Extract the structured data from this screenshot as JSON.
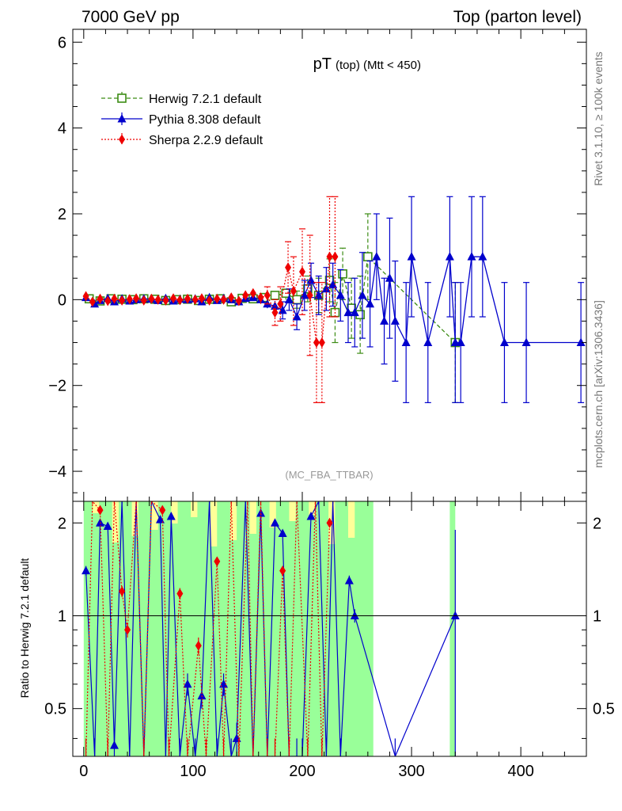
{
  "header": {
    "left": "7000 GeV pp",
    "right": "Top (parton level)"
  },
  "side_labels": {
    "rivet": "Rivet 3.1.10, ≥ 100k events",
    "mcplots": "mcplots.cern.ch [arXiv:1306.3436]"
  },
  "plot_title": {
    "main": "pT",
    "sub": "(top) (Mtt < 450)"
  },
  "analysis_tag": "(MC_FBA_TTBAR)",
  "ratio_ylabel": "Ratio to Herwig 7.2.1 default",
  "chart_data": [
    {
      "type": "line",
      "panel": "main",
      "title": "pT (top) (Mtt < 450)",
      "xlim": [
        -10,
        460
      ],
      "ylim": [
        -4.7,
        6.3
      ],
      "yticks": [
        -4,
        -2,
        0,
        2,
        4,
        6
      ],
      "ytick_labels": [
        "−4",
        "−2",
        "0",
        "2",
        "4",
        "6"
      ],
      "xticks": [
        0,
        100,
        200,
        300,
        400
      ],
      "xtick_labels": [
        "0",
        "100",
        "200",
        "300",
        "400"
      ],
      "legend_position": "top-left",
      "series": [
        {
          "name": "Herwig 7.2.1 default",
          "color": "#3c8c14",
          "marker": "open-square",
          "dash": "5,3",
          "x": [
            5,
            15,
            25,
            35,
            45,
            55,
            65,
            75,
            85,
            95,
            105,
            115,
            125,
            135,
            145,
            155,
            165,
            175,
            185,
            195,
            205,
            215,
            225,
            230,
            237,
            245,
            253,
            260,
            340
          ],
          "y": [
            0.02,
            -0.03,
            0.02,
            0.01,
            0.0,
            0.02,
            0.01,
            -0.02,
            0.0,
            0.01,
            -0.02,
            0.01,
            0.02,
            -0.05,
            0.03,
            0.02,
            0.05,
            0.1,
            0.15,
            0.0,
            0.25,
            0.1,
            0.45,
            -0.3,
            0.6,
            -0.2,
            -0.35,
            1.0,
            -1.0
          ],
          "err": [
            0.02,
            0.02,
            0.02,
            0.02,
            0.02,
            0.02,
            0.02,
            0.02,
            0.02,
            0.02,
            0.02,
            0.02,
            0.03,
            0.03,
            0.04,
            0.05,
            0.08,
            0.1,
            0.15,
            0.2,
            0.3,
            0.4,
            0.5,
            0.7,
            0.6,
            0.7,
            0.9,
            1.0,
            1.4
          ]
        },
        {
          "name": "Pythia 8.308 default",
          "color": "#0000cc",
          "marker": "filled-triangle",
          "dash": "",
          "x": [
            2,
            10,
            15,
            22,
            28,
            35,
            42,
            48,
            55,
            62,
            68,
            75,
            82,
            88,
            95,
            102,
            108,
            115,
            122,
            128,
            135,
            142,
            148,
            155,
            162,
            168,
            175,
            182,
            188,
            195,
            202,
            208,
            215,
            222,
            228,
            235,
            242,
            248,
            255,
            262,
            268,
            275,
            280,
            285,
            295,
            300,
            315,
            335,
            340,
            345,
            355,
            365,
            385,
            405,
            455
          ],
          "y": [
            0.05,
            -0.1,
            -0.02,
            0.03,
            -0.05,
            0.02,
            -0.03,
            0.0,
            0.02,
            0.01,
            -0.02,
            0.03,
            -0.03,
            0.01,
            0.0,
            0.02,
            -0.05,
            0.05,
            -0.02,
            0.03,
            0.0,
            -0.05,
            0.03,
            0.05,
            0.0,
            -0.1,
            -0.15,
            -0.25,
            0.0,
            -0.4,
            0.1,
            0.45,
            0.1,
            0.25,
            0.35,
            0.1,
            -0.3,
            -0.3,
            0.1,
            -0.1,
            1.0,
            -0.5,
            0.5,
            -0.5,
            -1.0,
            1.0,
            -1.0,
            1.0,
            -1.0,
            -1.0,
            1.0,
            1.0,
            -1.0,
            -1.0,
            -1.0
          ],
          "err": [
            0.02,
            0.03,
            0.02,
            0.02,
            0.02,
            0.02,
            0.02,
            0.02,
            0.02,
            0.02,
            0.02,
            0.02,
            0.02,
            0.02,
            0.02,
            0.02,
            0.02,
            0.03,
            0.03,
            0.03,
            0.04,
            0.04,
            0.05,
            0.06,
            0.07,
            0.1,
            0.12,
            0.2,
            0.25,
            0.3,
            0.35,
            0.4,
            0.45,
            0.5,
            0.5,
            0.6,
            0.7,
            0.8,
            1.0,
            1.0,
            1.0,
            1.0,
            1.4,
            1.4,
            1.4,
            1.4,
            1.4,
            1.4,
            1.4,
            1.4,
            1.4,
            1.4,
            1.4,
            1.4,
            1.4
          ]
        },
        {
          "name": "Sherpa 2.2.9 default",
          "color": "#ee0000",
          "marker": "filled-diamond",
          "dash": "2,2",
          "x": [
            2,
            8,
            15,
            22,
            28,
            35,
            42,
            48,
            55,
            62,
            68,
            75,
            82,
            88,
            95,
            102,
            108,
            115,
            122,
            128,
            135,
            142,
            148,
            155,
            162,
            168,
            175,
            180,
            187,
            192,
            200,
            207,
            213,
            218,
            225,
            230
          ],
          "y": [
            0.08,
            -0.05,
            0.02,
            -0.03,
            0.02,
            -0.02,
            0.01,
            0.03,
            -0.02,
            0.02,
            0.0,
            -0.02,
            0.03,
            -0.01,
            0.02,
            0.0,
            0.03,
            -0.02,
            0.02,
            0.0,
            0.05,
            -0.03,
            0.1,
            0.15,
            0.05,
            0.1,
            -0.3,
            -0.1,
            0.75,
            0.2,
            0.65,
            0.1,
            -1.0,
            -1.0,
            1.0,
            1.0
          ],
          "err": [
            0.05,
            0.04,
            0.03,
            0.03,
            0.03,
            0.03,
            0.03,
            0.03,
            0.03,
            0.03,
            0.03,
            0.03,
            0.03,
            0.03,
            0.03,
            0.03,
            0.04,
            0.04,
            0.05,
            0.05,
            0.06,
            0.07,
            0.08,
            0.1,
            0.15,
            0.2,
            0.3,
            0.4,
            0.6,
            0.8,
            1.0,
            1.4,
            1.4,
            1.4,
            1.4,
            1.4
          ]
        }
      ]
    },
    {
      "type": "line",
      "panel": "ratio",
      "ylabel": "Ratio to Herwig 7.2.1 default",
      "xlim": [
        -10,
        460
      ],
      "ylim": [
        0.35,
        2.35
      ],
      "yscale": "log",
      "yticks": [
        0.5,
        1,
        2
      ],
      "ytick_labels": [
        "0.5",
        "1",
        "2"
      ],
      "xticks": [
        0,
        100,
        200,
        300,
        400
      ],
      "xtick_labels": [
        "0",
        "100",
        "200",
        "300",
        "400"
      ],
      "reference_line": 1,
      "bands": [
        {
          "name": "Herwig 2-sigma band",
          "color": "#ffff99"
        },
        {
          "name": "Herwig 1-sigma band",
          "color": "#99ff99"
        }
      ],
      "band_ranges": [
        [
          0,
          265
        ],
        [
          335,
          340
        ]
      ],
      "series": [
        {
          "name": "Pythia / Herwig",
          "color": "#0000cc",
          "marker": "filled-triangle",
          "x": [
            2,
            10,
            15,
            22,
            28,
            35,
            42,
            48,
            55,
            62,
            70,
            75,
            80,
            88,
            95,
            102,
            108,
            115,
            122,
            128,
            135,
            140,
            148,
            155,
            162,
            168,
            175,
            182,
            188,
            195,
            200,
            208,
            215,
            222,
            228,
            235,
            243,
            248,
            285,
            340
          ],
          "y": [
            1.4,
            0.35,
            2.0,
            1.95,
            0.38,
            2.35,
            0.35,
            2.35,
            0.35,
            2.35,
            2.05,
            0.35,
            2.1,
            0.35,
            0.6,
            0.35,
            0.55,
            2.35,
            0.35,
            0.6,
            0.35,
            0.4,
            2.35,
            0.35,
            2.15,
            0.35,
            2.0,
            1.85,
            0.35,
            0.35,
            0.35,
            2.1,
            2.35,
            0.35,
            2.35,
            0.35,
            1.3,
            1.0,
            0.35,
            1.0
          ],
          "err": [
            0.05,
            0.05,
            0.05,
            0.05,
            0.05,
            0.05,
            0.05,
            0.05,
            0.05,
            0.05,
            0.05,
            0.05,
            0.05,
            0.05,
            0.05,
            0.05,
            0.05,
            0.05,
            0.05,
            0.05,
            0.05,
            0.05,
            0.05,
            0.05,
            0.05,
            0.05,
            0.05,
            0.05,
            0.05,
            0.05,
            0.05,
            0.05,
            0.05,
            0.05,
            0.05,
            0.05,
            0.05,
            0.05,
            0.05,
            0.9
          ]
        },
        {
          "name": "Sherpa / Herwig",
          "color": "#ee0000",
          "marker": "filled-diamond",
          "x": [
            2,
            8,
            15,
            22,
            28,
            35,
            40,
            48,
            55,
            62,
            72,
            78,
            88,
            95,
            105,
            112,
            122,
            128,
            135,
            142,
            150,
            155,
            162,
            168,
            175,
            182,
            188,
            195,
            205,
            212,
            218,
            225
          ],
          "y": [
            0.35,
            2.35,
            2.2,
            0.35,
            2.35,
            1.2,
            0.9,
            2.35,
            0.35,
            2.35,
            2.2,
            0.35,
            1.18,
            0.35,
            0.8,
            0.35,
            1.5,
            0.35,
            2.35,
            0.35,
            2.35,
            0.35,
            2.35,
            0.35,
            0.35,
            1.4,
            0.35,
            2.35,
            0.35,
            2.35,
            0.35,
            2.0
          ],
          "err": [
            0.05,
            0.05,
            0.05,
            0.05,
            0.05,
            0.05,
            0.05,
            0.05,
            0.05,
            0.05,
            0.05,
            0.05,
            0.05,
            0.05,
            0.05,
            0.05,
            0.05,
            0.05,
            0.05,
            0.05,
            0.05,
            0.05,
            0.05,
            0.05,
            0.05,
            0.05,
            0.05,
            0.05,
            0.05,
            0.05,
            0.05,
            0.05
          ]
        }
      ]
    }
  ]
}
